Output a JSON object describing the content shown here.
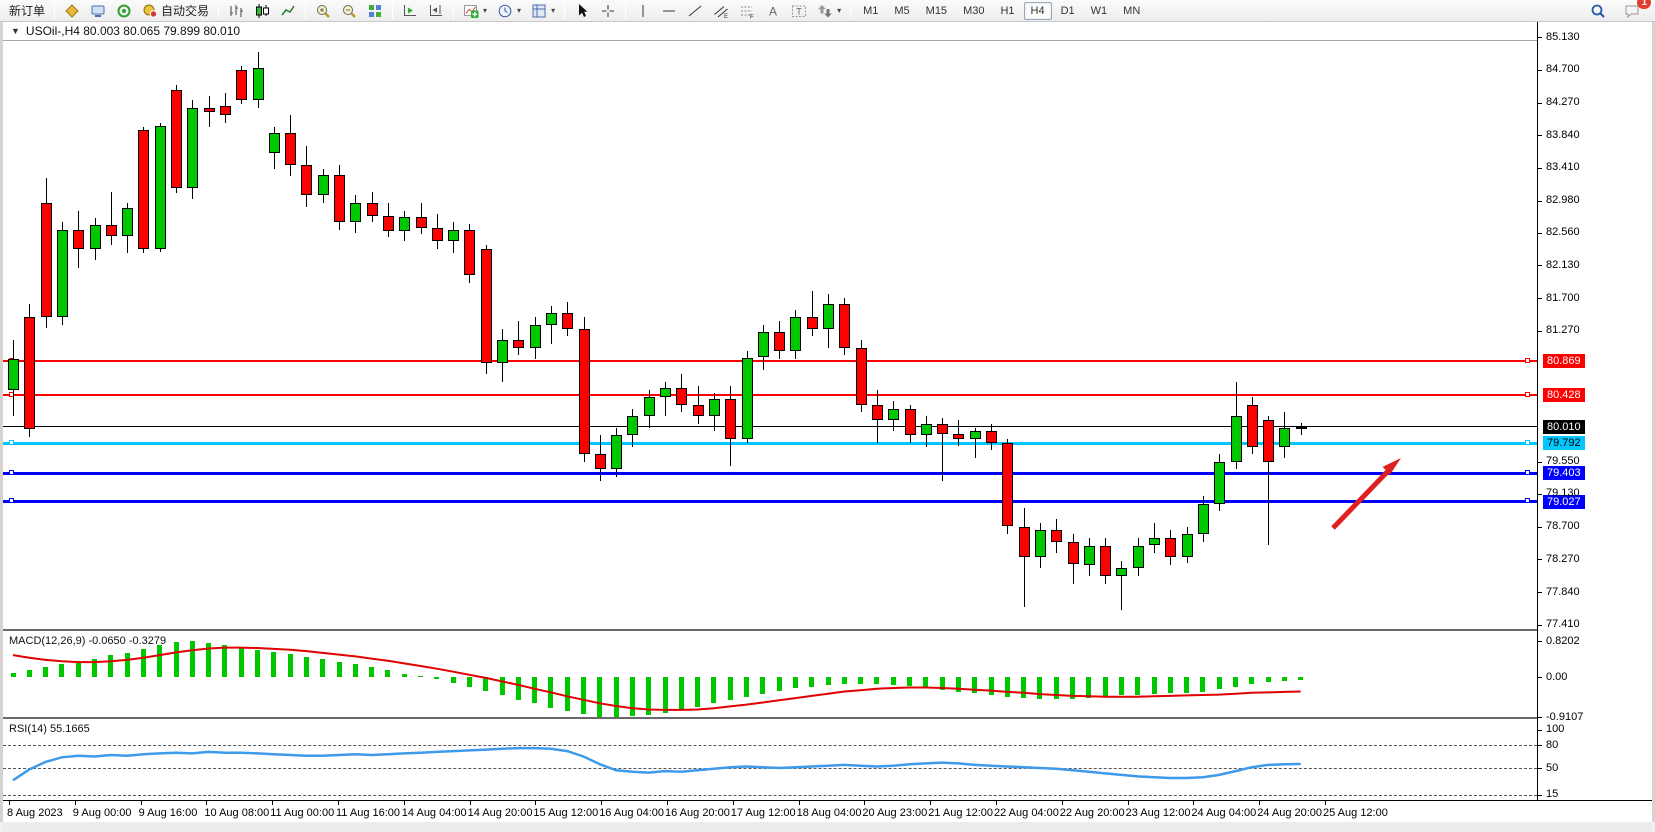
{
  "toolbar": {
    "new_order_label": "新订单",
    "auto_trading_label": "自动交易",
    "groups": [
      {
        "items": [
          {
            "name": "new-order-button",
            "icon": "neworder",
            "label_key": "new_order_label"
          }
        ]
      },
      {
        "items": [
          {
            "name": "metaeditor-button",
            "icon": "goldbox"
          },
          {
            "name": "profiles-button",
            "icon": "computer"
          },
          {
            "name": "signals-button",
            "icon": "signal"
          },
          {
            "name": "auto-trading-button",
            "icon": "robot",
            "label_key": "auto_trading_label"
          }
        ]
      },
      {
        "items": [
          {
            "name": "bar-chart-button",
            "icon": "barchart"
          },
          {
            "name": "candlestick-chart-button",
            "icon": "candles",
            "active": true
          },
          {
            "name": "line-chart-button",
            "icon": "linechart"
          }
        ]
      },
      {
        "items": [
          {
            "name": "zoom-in-button",
            "icon": "zoomin"
          },
          {
            "name": "zoom-out-button",
            "icon": "zoomout"
          },
          {
            "name": "tile-windows-button",
            "icon": "tile"
          }
        ]
      },
      {
        "items": [
          {
            "name": "auto-scroll-button",
            "icon": "autoscroll"
          },
          {
            "name": "chart-shift-button",
            "icon": "chartshift"
          }
        ]
      },
      {
        "items": [
          {
            "name": "indicators-button",
            "icon": "indicators",
            "dd": true
          },
          {
            "name": "periods-button",
            "icon": "clock",
            "dd": true
          },
          {
            "name": "templates-button",
            "icon": "templates",
            "dd": true
          }
        ]
      },
      {
        "items": [
          {
            "name": "cursor-button",
            "icon": "cursor"
          },
          {
            "name": "crosshair-button",
            "icon": "crosshair"
          }
        ]
      },
      {
        "items": [
          {
            "name": "vertical-line-button",
            "icon": "vline"
          },
          {
            "name": "horizontal-line-button",
            "icon": "hline"
          },
          {
            "name": "trendline-button",
            "icon": "trendline"
          },
          {
            "name": "channel-button",
            "icon": "channel"
          },
          {
            "name": "fibonacci-button",
            "icon": "fib"
          },
          {
            "name": "text-button",
            "icon": "texta"
          },
          {
            "name": "label-button",
            "icon": "labelt"
          },
          {
            "name": "arrows-button",
            "icon": "shapes",
            "dd": true
          }
        ]
      }
    ],
    "timeframes": [
      "M1",
      "M5",
      "M15",
      "M30",
      "H1",
      "H4",
      "D1",
      "W1",
      "MN"
    ],
    "active_timeframe": "H4",
    "notification_count": "1"
  },
  "chart": {
    "title": "USOil-,H4  80.003 80.065 79.899 80.010",
    "price_axis": [
      "85.130",
      "84.700",
      "84.270",
      "83.840",
      "83.410",
      "82.980",
      "82.560",
      "82.130",
      "81.700",
      "81.270",
      "79.550",
      "79.130",
      "78.700",
      "78.270",
      "77.840",
      "77.410"
    ],
    "levels": [
      {
        "label": "80.869",
        "price": 80.869,
        "color": "#ff0000",
        "text": "#ffffff",
        "thickness": 2,
        "handles": true
      },
      {
        "label": "80.428",
        "price": 80.428,
        "color": "#ff0000",
        "text": "#ffffff",
        "thickness": 2,
        "handles": true
      },
      {
        "label": "80.010",
        "price": 80.01,
        "color": "#000000",
        "text": "#ffffff",
        "thickness": 1,
        "handles": false
      },
      {
        "label": "79.792",
        "price": 79.792,
        "color": "#00c8ff",
        "text": "#000000",
        "thickness": 3,
        "handles": true
      },
      {
        "label": "79.403",
        "price": 79.403,
        "color": "#0000ff",
        "text": "#ffffff",
        "thickness": 3,
        "handles": true
      },
      {
        "label": "79.027",
        "price": 79.027,
        "color": "#0000ff",
        "text": "#ffffff",
        "thickness": 3,
        "handles": true
      }
    ],
    "time_labels": [
      "8 Aug 2023",
      "9 Aug 00:00",
      "9 Aug 16:00",
      "10 Aug 08:00",
      "11 Aug 00:00",
      "11 Aug 16:00",
      "14 Aug 04:00",
      "14 Aug 20:00",
      "15 Aug 12:00",
      "16 Aug 04:00",
      "16 Aug 20:00",
      "17 Aug 12:00",
      "18 Aug 04:00",
      "20 Aug 23:00",
      "21 Aug 12:00",
      "22 Aug 04:00",
      "22 Aug 20:00",
      "23 Aug 12:00",
      "24 Aug 04:00",
      "24 Aug 20:00",
      "25 Aug 12:00"
    ]
  },
  "macd": {
    "label_full": "MACD(12,26,9) -0.0650 -0.3279",
    "axis": [
      "0.8202",
      "0.00",
      "-0.9107"
    ]
  },
  "rsi": {
    "label_full": "RSI(14) 55.1665",
    "axis": [
      "100",
      "80",
      "50",
      "15"
    ]
  },
  "chart_data": {
    "type": "candlestick",
    "symbol": "USOil-",
    "timeframe": "H4",
    "title": "USOil-,H4",
    "ohlc_display": {
      "open": 80.003,
      "high": 80.065,
      "low": 79.899,
      "close": 80.01
    },
    "y_axis_range": [
      77.41,
      85.13
    ],
    "x_labels": [
      "8 Aug 2023",
      "9 Aug 00:00",
      "9 Aug 16:00",
      "10 Aug 08:00",
      "11 Aug 00:00",
      "11 Aug 16:00",
      "14 Aug 04:00",
      "14 Aug 20:00",
      "15 Aug 12:00",
      "16 Aug 04:00",
      "16 Aug 20:00",
      "17 Aug 12:00",
      "18 Aug 04:00",
      "20 Aug 23:00",
      "21 Aug 12:00",
      "22 Aug 04:00",
      "22 Aug 20:00",
      "23 Aug 12:00",
      "24 Aug 04:00",
      "24 Aug 20:00",
      "25 Aug 12:00"
    ],
    "horizontal_levels": [
      80.869,
      80.428,
      80.01,
      79.792,
      79.403,
      79.027
    ],
    "annotation": {
      "type": "arrow",
      "direction": "up-right",
      "color": "#e02020"
    },
    "candles": [
      [
        80.5,
        81.15,
        80.15,
        80.9
      ],
      [
        81.45,
        81.62,
        79.88,
        79.98
      ],
      [
        82.95,
        83.28,
        81.3,
        81.45
      ],
      [
        81.45,
        82.7,
        81.35,
        82.6
      ],
      [
        82.6,
        82.84,
        82.1,
        82.35
      ],
      [
        82.35,
        82.75,
        82.2,
        82.66
      ],
      [
        82.66,
        83.1,
        82.4,
        82.52
      ],
      [
        82.52,
        82.95,
        82.3,
        82.88
      ],
      [
        83.91,
        83.95,
        82.29,
        82.35
      ],
      [
        82.35,
        84.0,
        82.3,
        83.96
      ],
      [
        84.43,
        84.5,
        83.08,
        83.15
      ],
      [
        83.15,
        84.3,
        83.0,
        84.2
      ],
      [
        84.2,
        84.35,
        83.95,
        84.15
      ],
      [
        84.22,
        84.4,
        84.0,
        84.1
      ],
      [
        84.7,
        84.75,
        84.25,
        84.3
      ],
      [
        84.3,
        84.93,
        84.2,
        84.72
      ],
      [
        83.6,
        83.95,
        83.4,
        83.87
      ],
      [
        83.87,
        84.1,
        83.3,
        83.45
      ],
      [
        83.45,
        83.7,
        82.9,
        83.05
      ],
      [
        83.05,
        83.4,
        82.95,
        83.32
      ],
      [
        83.32,
        83.45,
        82.6,
        82.7
      ],
      [
        82.7,
        83.05,
        82.55,
        82.95
      ],
      [
        82.95,
        83.1,
        82.7,
        82.78
      ],
      [
        82.78,
        82.95,
        82.5,
        82.58
      ],
      [
        82.58,
        82.85,
        82.45,
        82.76
      ],
      [
        82.76,
        82.95,
        82.55,
        82.62
      ],
      [
        82.62,
        82.8,
        82.35,
        82.45
      ],
      [
        82.45,
        82.7,
        82.3,
        82.6
      ],
      [
        82.6,
        82.68,
        81.9,
        82.0
      ],
      [
        82.35,
        82.4,
        80.7,
        80.85
      ],
      [
        80.85,
        81.3,
        80.6,
        81.15
      ],
      [
        81.15,
        81.4,
        80.95,
        81.05
      ],
      [
        81.05,
        81.45,
        80.9,
        81.35
      ],
      [
        81.35,
        81.6,
        81.1,
        81.5
      ],
      [
        81.5,
        81.65,
        81.2,
        81.3
      ],
      [
        81.3,
        81.45,
        79.55,
        79.65
      ],
      [
        79.65,
        79.9,
        79.3,
        79.45
      ],
      [
        79.45,
        80.0,
        79.35,
        79.9
      ],
      [
        79.9,
        80.25,
        79.75,
        80.15
      ],
      [
        80.15,
        80.5,
        80.0,
        80.4
      ],
      [
        80.4,
        80.6,
        80.15,
        80.52
      ],
      [
        80.52,
        80.7,
        80.2,
        80.3
      ],
      [
        80.3,
        80.55,
        80.05,
        80.15
      ],
      [
        80.15,
        80.45,
        79.95,
        80.38
      ],
      [
        80.38,
        80.55,
        79.5,
        79.85
      ],
      [
        79.85,
        81.0,
        79.8,
        80.92
      ],
      [
        80.92,
        81.35,
        80.75,
        81.25
      ],
      [
        81.25,
        81.4,
        80.9,
        81.0
      ],
      [
        81.0,
        81.55,
        80.9,
        81.45
      ],
      [
        81.45,
        81.8,
        81.2,
        81.3
      ],
      [
        81.3,
        81.75,
        81.05,
        81.62
      ],
      [
        81.62,
        81.7,
        80.95,
        81.05
      ],
      [
        81.05,
        81.15,
        80.2,
        80.3
      ],
      [
        80.3,
        80.5,
        79.8,
        80.1
      ],
      [
        80.1,
        80.35,
        79.95,
        80.25
      ],
      [
        80.25,
        80.3,
        79.8,
        79.9
      ],
      [
        79.9,
        80.15,
        79.75,
        80.05
      ],
      [
        80.05,
        80.12,
        79.3,
        79.92
      ],
      [
        79.92,
        80.1,
        79.75,
        79.85
      ],
      [
        79.85,
        80.0,
        79.6,
        79.95
      ],
      [
        79.95,
        80.05,
        79.7,
        79.8
      ],
      [
        79.8,
        79.85,
        78.6,
        78.7
      ],
      [
        78.7,
        78.95,
        77.65,
        78.3
      ],
      [
        78.3,
        78.75,
        78.15,
        78.65
      ],
      [
        78.65,
        78.8,
        78.35,
        78.5
      ],
      [
        78.5,
        78.6,
        77.95,
        78.2
      ],
      [
        78.2,
        78.55,
        78.05,
        78.45
      ],
      [
        78.45,
        78.55,
        77.95,
        78.05
      ],
      [
        78.05,
        78.25,
        77.6,
        78.15
      ],
      [
        78.15,
        78.55,
        78.05,
        78.45
      ],
      [
        78.45,
        78.75,
        78.35,
        78.55
      ],
      [
        78.55,
        78.65,
        78.2,
        78.3
      ],
      [
        78.3,
        78.7,
        78.22,
        78.6
      ],
      [
        78.6,
        79.1,
        78.5,
        79.0
      ],
      [
        79.0,
        79.65,
        78.9,
        79.55
      ],
      [
        79.55,
        80.6,
        79.45,
        80.15
      ],
      [
        80.3,
        80.4,
        79.65,
        79.75
      ],
      [
        80.1,
        80.15,
        78.45,
        79.55
      ],
      [
        79.75,
        80.2,
        79.6,
        80.0
      ],
      [
        80.003,
        80.065,
        79.899,
        80.01
      ]
    ],
    "indicators": [
      {
        "name": "MACD",
        "params": [
          12,
          26,
          9
        ],
        "current": [
          -0.065,
          -0.3279
        ],
        "axis_range": [
          -0.9107,
          0.8202
        ],
        "histogram": [
          0.1,
          0.15,
          0.22,
          0.3,
          0.35,
          0.4,
          0.5,
          0.55,
          0.65,
          0.72,
          0.8,
          0.82,
          0.78,
          0.72,
          0.68,
          0.62,
          0.58,
          0.52,
          0.46,
          0.4,
          0.35,
          0.3,
          0.24,
          0.16,
          0.08,
          0.02,
          -0.05,
          -0.14,
          -0.22,
          -0.32,
          -0.42,
          -0.52,
          -0.6,
          -0.7,
          -0.78,
          -0.85,
          -0.9,
          -0.91,
          -0.89,
          -0.86,
          -0.82,
          -0.76,
          -0.68,
          -0.6,
          -0.52,
          -0.45,
          -0.38,
          -0.32,
          -0.26,
          -0.22,
          -0.18,
          -0.16,
          -0.15,
          -0.16,
          -0.18,
          -0.21,
          -0.25,
          -0.29,
          -0.33,
          -0.37,
          -0.41,
          -0.45,
          -0.48,
          -0.5,
          -0.51,
          -0.5,
          -0.48,
          -0.45,
          -0.42,
          -0.4,
          -0.38,
          -0.37,
          -0.36,
          -0.33,
          -0.28,
          -0.22,
          -0.16,
          -0.12,
          -0.09,
          -0.065
        ],
        "signal": [
          0.5,
          0.44,
          0.39,
          0.36,
          0.34,
          0.34,
          0.36,
          0.39,
          0.44,
          0.5,
          0.56,
          0.61,
          0.65,
          0.67,
          0.67,
          0.66,
          0.64,
          0.62,
          0.59,
          0.55,
          0.51,
          0.47,
          0.42,
          0.37,
          0.31,
          0.25,
          0.19,
          0.12,
          0.05,
          -0.02,
          -0.1,
          -0.18,
          -0.27,
          -0.35,
          -0.44,
          -0.52,
          -0.6,
          -0.66,
          -0.71,
          -0.74,
          -0.75,
          -0.75,
          -0.74,
          -0.71,
          -0.67,
          -0.63,
          -0.58,
          -0.53,
          -0.48,
          -0.43,
          -0.38,
          -0.33,
          -0.3,
          -0.27,
          -0.25,
          -0.24,
          -0.24,
          -0.25,
          -0.27,
          -0.29,
          -0.31,
          -0.34,
          -0.36,
          -0.39,
          -0.41,
          -0.43,
          -0.44,
          -0.45,
          -0.45,
          -0.45,
          -0.44,
          -0.43,
          -0.42,
          -0.41,
          -0.4,
          -0.38,
          -0.36,
          -0.35,
          -0.34,
          -0.33
        ]
      },
      {
        "name": "RSI",
        "params": [
          14
        ],
        "current": 55.1665,
        "levels": [
          80,
          50,
          15
        ],
        "values": [
          34,
          48,
          58,
          64,
          66,
          65,
          67,
          66,
          68,
          69,
          70,
          69,
          71,
          70,
          70,
          69,
          68,
          67,
          66,
          66,
          67,
          68,
          67,
          68,
          69,
          70,
          71,
          72,
          73,
          74,
          75,
          76,
          76,
          75,
          72,
          65,
          55,
          47,
          45,
          44,
          46,
          45,
          47,
          49,
          51,
          52,
          51,
          50,
          51,
          52,
          53,
          54,
          53,
          52,
          53,
          55,
          56,
          57,
          56,
          54,
          53,
          52,
          51,
          50,
          49,
          47,
          45,
          43,
          41,
          39,
          38,
          37,
          37,
          38,
          41,
          46,
          51,
          54,
          55,
          55.2
        ]
      }
    ]
  }
}
